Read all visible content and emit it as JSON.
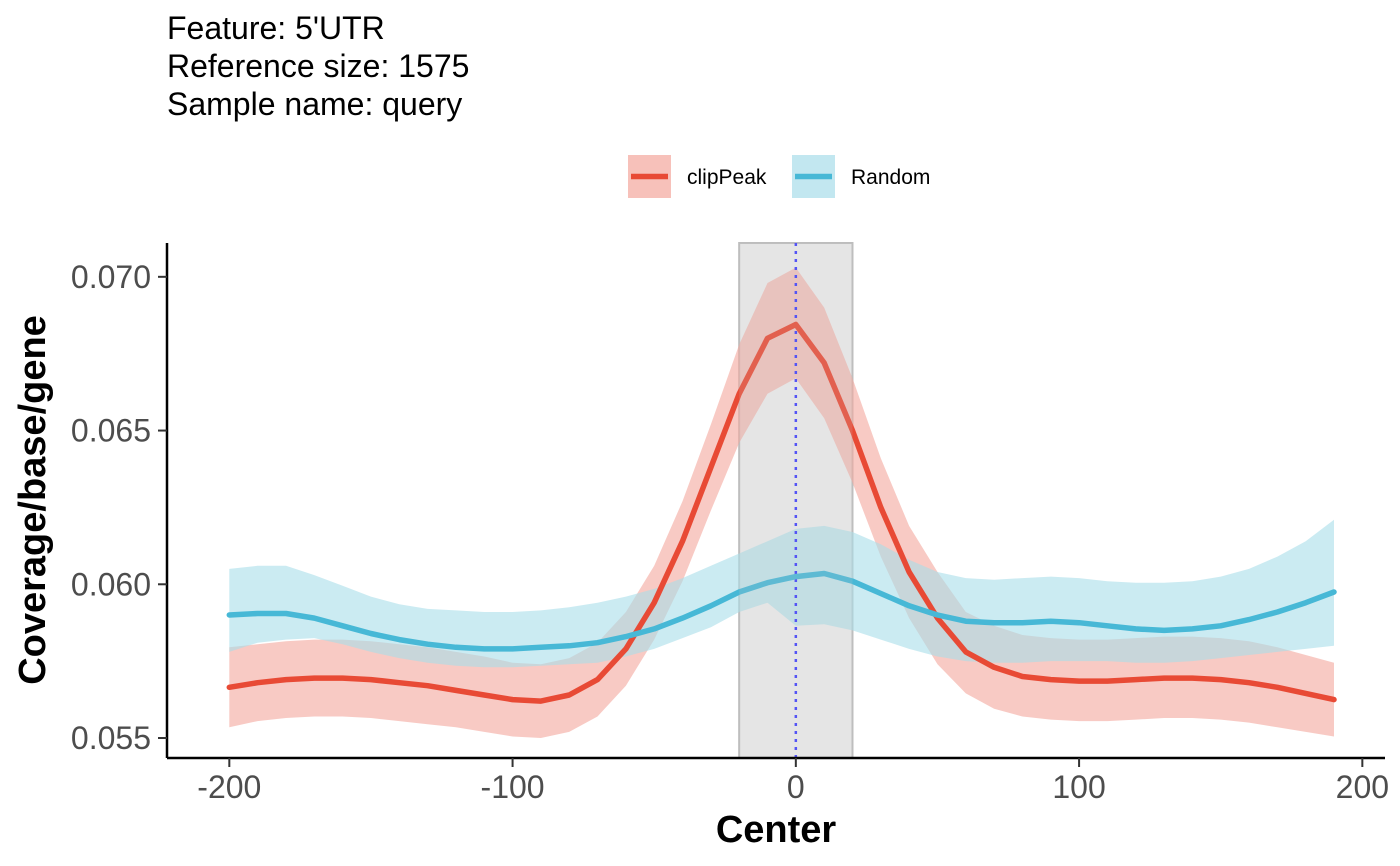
{
  "chart_data": {
    "type": "line",
    "subtitle_lines": [
      "Feature: 5'UTR",
      "Reference size: 1575",
      "Sample name: query"
    ],
    "xlabel": "Center",
    "ylabel": "Coverage/base/gene",
    "xlim": [
      -222,
      208
    ],
    "ylim": [
      0.05435,
      0.0711
    ],
    "x_ticks": [
      -200,
      -100,
      0,
      100,
      200
    ],
    "x_tick_labels": [
      "-200",
      "-100",
      "0",
      "100",
      "200"
    ],
    "y_ticks": [
      0.055,
      0.06,
      0.065,
      0.07
    ],
    "y_tick_labels": [
      "0.055",
      "0.060",
      "0.065",
      "0.070"
    ],
    "highlight_region": [
      -20,
      20
    ],
    "center_line": 0,
    "legend_position": "top",
    "grid": false,
    "x": [
      -200,
      -190,
      -180,
      -170,
      -160,
      -150,
      -140,
      -130,
      -120,
      -110,
      -100,
      -90,
      -80,
      -70,
      -60,
      -50,
      -40,
      -30,
      -20,
      -10,
      0,
      10,
      20,
      30,
      40,
      50,
      60,
      70,
      80,
      90,
      100,
      110,
      120,
      130,
      140,
      150,
      160,
      170,
      180,
      190
    ],
    "series": [
      {
        "name": "clipPeak",
        "color": "#e84a35",
        "band_color": "#f4a69c",
        "values": [
          0.05665,
          0.0568,
          0.0569,
          0.05695,
          0.05695,
          0.0569,
          0.0568,
          0.0567,
          0.05655,
          0.0564,
          0.05625,
          0.0562,
          0.0564,
          0.0569,
          0.0579,
          0.0594,
          0.0614,
          0.0638,
          0.0662,
          0.068,
          0.06845,
          0.0672,
          0.065,
          0.0625,
          0.0604,
          0.0589,
          0.0578,
          0.0573,
          0.057,
          0.0569,
          0.05685,
          0.05685,
          0.0569,
          0.05695,
          0.05695,
          0.0569,
          0.0568,
          0.05665,
          0.05645,
          0.05625
        ],
        "lower": [
          0.05535,
          0.05555,
          0.05565,
          0.0557,
          0.0557,
          0.05565,
          0.05555,
          0.05545,
          0.05535,
          0.0552,
          0.05505,
          0.055,
          0.0552,
          0.0557,
          0.0567,
          0.0582,
          0.0601,
          0.0624,
          0.0646,
          0.0662,
          0.0667,
          0.0654,
          0.0633,
          0.0609,
          0.0589,
          0.0574,
          0.05645,
          0.05595,
          0.0557,
          0.0556,
          0.05555,
          0.05555,
          0.0556,
          0.05565,
          0.05565,
          0.0556,
          0.0555,
          0.05535,
          0.0552,
          0.05505
        ],
        "upper": [
          0.05795,
          0.05805,
          0.05815,
          0.0582,
          0.0582,
          0.05815,
          0.05805,
          0.05795,
          0.0578,
          0.05765,
          0.05745,
          0.0574,
          0.0576,
          0.0581,
          0.0591,
          0.0606,
          0.0627,
          0.0652,
          0.0678,
          0.0698,
          0.0703,
          0.069,
          0.0667,
          0.0641,
          0.0619,
          0.0604,
          0.0591,
          0.05865,
          0.05835,
          0.05825,
          0.0582,
          0.0582,
          0.05825,
          0.0583,
          0.0583,
          0.05825,
          0.05815,
          0.05795,
          0.0577,
          0.05745
        ]
      },
      {
        "name": "Random",
        "color": "#47b8d6",
        "band_color": "#a8dde9",
        "values": [
          0.059,
          0.05905,
          0.05905,
          0.0589,
          0.05865,
          0.0584,
          0.0582,
          0.05805,
          0.05795,
          0.0579,
          0.0579,
          0.05795,
          0.058,
          0.0581,
          0.0583,
          0.05855,
          0.0589,
          0.0593,
          0.05975,
          0.06005,
          0.06025,
          0.06035,
          0.0601,
          0.0597,
          0.0593,
          0.059,
          0.0588,
          0.05875,
          0.05875,
          0.0588,
          0.05875,
          0.05865,
          0.05855,
          0.0585,
          0.05855,
          0.05865,
          0.05885,
          0.0591,
          0.0594,
          0.05975
        ],
        "lower": [
          0.0578,
          0.0581,
          0.0582,
          0.05825,
          0.05805,
          0.0578,
          0.0576,
          0.05745,
          0.05735,
          0.0573,
          0.0573,
          0.05735,
          0.0574,
          0.05745,
          0.05765,
          0.0579,
          0.05825,
          0.0586,
          0.0591,
          0.0594,
          0.05865,
          0.0587,
          0.0585,
          0.0582,
          0.0579,
          0.05765,
          0.0575,
          0.05745,
          0.05745,
          0.0575,
          0.0575,
          0.0575,
          0.05745,
          0.05745,
          0.0575,
          0.0576,
          0.0577,
          0.0578,
          0.0579,
          0.058
        ],
        "upper": [
          0.0605,
          0.0606,
          0.0606,
          0.0603,
          0.05995,
          0.0596,
          0.05935,
          0.0592,
          0.05915,
          0.0591,
          0.0591,
          0.05915,
          0.05925,
          0.0594,
          0.0596,
          0.05985,
          0.0602,
          0.0606,
          0.061,
          0.0614,
          0.0618,
          0.0619,
          0.0617,
          0.0613,
          0.0608,
          0.0604,
          0.0602,
          0.06015,
          0.0602,
          0.06025,
          0.0602,
          0.0601,
          0.06005,
          0.06005,
          0.0601,
          0.06025,
          0.0605,
          0.0609,
          0.0614,
          0.0621
        ]
      }
    ]
  }
}
